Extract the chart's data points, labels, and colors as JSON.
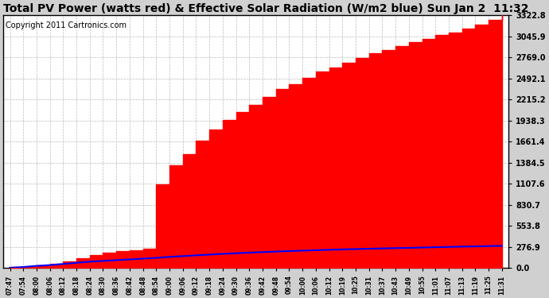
{
  "title": "Total PV Power (watts red) & Effective Solar Radiation (W/m2 blue) Sun Jan 2  11:32",
  "copyright": "Copyright 2011 Cartronics.com",
  "yticks": [
    0.0,
    276.9,
    553.8,
    830.7,
    1107.6,
    1384.5,
    1661.4,
    1938.3,
    2215.2,
    2492.1,
    2769.0,
    3045.9,
    3322.8
  ],
  "ymax": 3322.8,
  "ymin": 0.0,
  "xtick_labels": [
    "07:47",
    "07:54",
    "08:00",
    "08:06",
    "08:12",
    "08:18",
    "08:24",
    "08:30",
    "08:36",
    "08:42",
    "08:48",
    "08:54",
    "09:00",
    "09:06",
    "09:12",
    "09:18",
    "09:24",
    "09:30",
    "09:36",
    "09:42",
    "09:48",
    "09:54",
    "10:00",
    "10:06",
    "10:12",
    "10:19",
    "10:25",
    "10:31",
    "10:37",
    "10:43",
    "10:49",
    "10:55",
    "11:01",
    "11:07",
    "11:13",
    "11:19",
    "11:25",
    "11:31"
  ],
  "fig_bg_color": "#d0d0d0",
  "plot_bg_color": "#ffffff",
  "grid_color": "#bbbbbb",
  "red_color": "#ff0000",
  "blue_color": "#0000ff",
  "title_fontsize": 10,
  "copyright_fontsize": 7,
  "red_values": [
    10,
    20,
    40,
    60,
    90,
    130,
    170,
    200,
    220,
    230,
    250,
    1100,
    1350,
    1500,
    1680,
    1820,
    1950,
    2050,
    2150,
    2250,
    2350,
    2420,
    2500,
    2580,
    2640,
    2700,
    2760,
    2820,
    2870,
    2920,
    2970,
    3010,
    3060,
    3100,
    3150,
    3200,
    3260,
    3322
  ],
  "blue_values": [
    5,
    15,
    30,
    40,
    55,
    70,
    85,
    95,
    105,
    115,
    125,
    135,
    148,
    158,
    168,
    178,
    188,
    196,
    204,
    211,
    218,
    224,
    230,
    236,
    241,
    246,
    251,
    255,
    259,
    263,
    267,
    271,
    275,
    279,
    283,
    286,
    290,
    293
  ]
}
